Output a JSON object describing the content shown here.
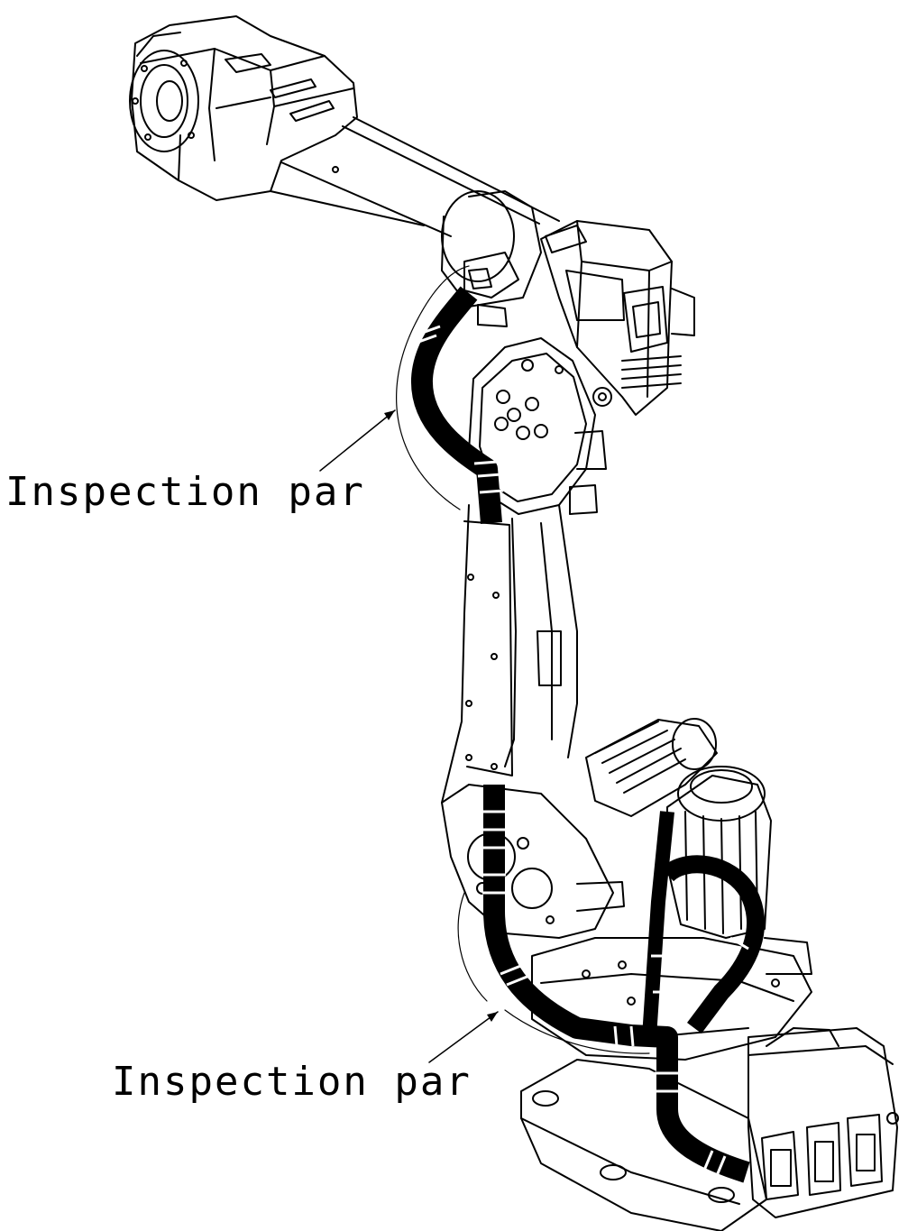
{
  "callouts": [
    {
      "label": "Inspection par"
    },
    {
      "label": "Inspection par"
    }
  ],
  "colors": {
    "line": "#000000",
    "cable": "#000000",
    "background": "#ffffff"
  }
}
